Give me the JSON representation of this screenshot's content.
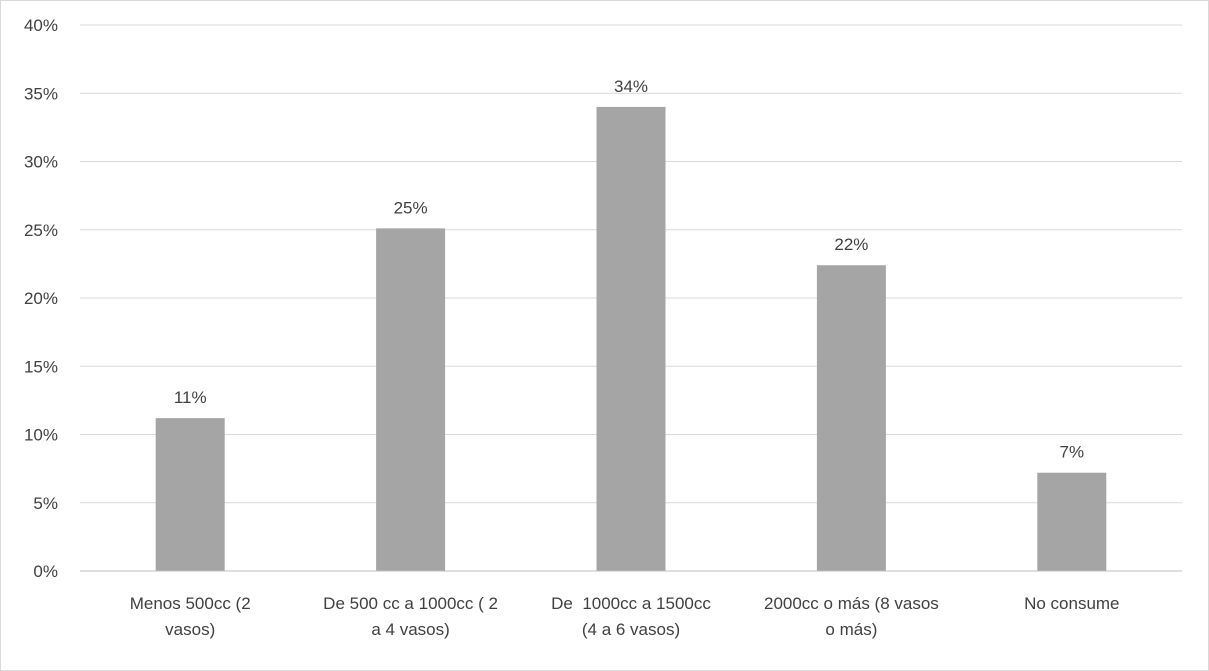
{
  "chart_data": {
    "type": "bar",
    "title": "",
    "xlabel": "",
    "ylabel": "",
    "categories": [
      [
        "Menos 500cc (2",
        "vasos)"
      ],
      [
        "De 500 cc a 1000cc ( 2",
        "a 4 vasos)"
      ],
      [
        "De  1000cc a 1500cc",
        "(4 a 6 vasos)"
      ],
      [
        "2000cc o más (8 vasos",
        "o más)"
      ],
      [
        "No consume"
      ]
    ],
    "values": [
      11.2,
      25.1,
      34.0,
      22.4,
      7.2
    ],
    "data_labels": [
      "11%",
      "25%",
      "34%",
      "22%",
      "7%"
    ],
    "ylim": [
      0,
      40
    ],
    "yticks": [
      "0%",
      "5%",
      "10%",
      "15%",
      "20%",
      "25%",
      "30%",
      "35%",
      "40%"
    ],
    "grid": true,
    "bar_color": "#a5a5a5"
  }
}
